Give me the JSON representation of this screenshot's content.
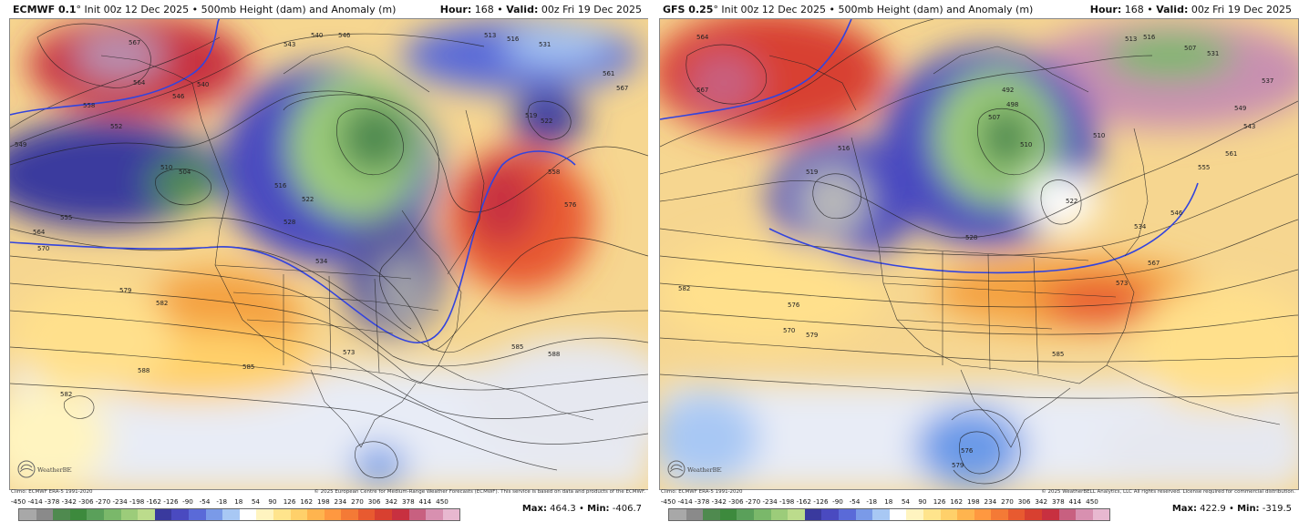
{
  "panels": [
    {
      "model": "ECMWF 0.1",
      "init": "° Init 00z 12 Dec 2025 • 500mb Height (dam) and Anomaly (m)",
      "hour_label": "Hour:",
      "hour": "168",
      "valid_label": "Valid:",
      "valid": "00z Fri 19 Dec 2025",
      "climo": "Climo: ECMWF ERA-5 1991-2020",
      "copyright": "© 2025 European Centre for Medium-Range Weather Forecasts (ECMWF). This service is based on data and products of the ECMWF.",
      "max_label": "Max:",
      "max": "464.3",
      "min_label": "Min:",
      "min": "-406.7",
      "contour_labels": [
        "567",
        "564",
        "546",
        "540",
        "558",
        "552",
        "549",
        "510",
        "504",
        "534",
        "528",
        "522",
        "516",
        "555",
        "564",
        "570",
        "579",
        "582",
        "585",
        "588",
        "582",
        "573",
        "585",
        "588",
        "576",
        "558",
        "519",
        "522",
        "513",
        "516",
        "531",
        "561",
        "567",
        "540",
        "546",
        "543"
      ]
    },
    {
      "model": "GFS 0.25",
      "init": "° Init 00z 12 Dec 2025 • 500mb Height (dam) and Anomaly (m)",
      "hour_label": "Hour:",
      "hour": "168",
      "valid_label": "Valid:",
      "valid": "00z Fri 19 Dec 2025",
      "climo": "Climo: ECMWF ERA-5 1991-2020",
      "copyright": "© 2025 WeatherBELL Analytics, LLC All rights reserved. License required for commercial distribution.",
      "max_label": "Max:",
      "max": "422.9",
      "min_label": "Min:",
      "min": "-319.5",
      "contour_labels": [
        "564",
        "567",
        "516",
        "519",
        "510",
        "507",
        "492",
        "498",
        "522",
        "528",
        "534",
        "546",
        "555",
        "561",
        "567",
        "573",
        "582",
        "576",
        "570",
        "579",
        "585",
        "576",
        "579",
        "543",
        "549",
        "537",
        "513",
        "516",
        "531",
        "507",
        "510"
      ]
    }
  ],
  "logo_text": "WeatherBELL",
  "colorbar": {
    "labels": [
      "-450",
      "-414",
      "-378",
      "-342",
      "-306",
      "-270",
      "-234",
      "-198",
      "-162",
      "-126",
      "-90",
      "-54",
      "-18",
      "18",
      "54",
      "90",
      "126",
      "162",
      "198",
      "234",
      "270",
      "306",
      "342",
      "378",
      "414",
      "450"
    ],
    "colors": [
      "#a8a8a8",
      "#8a8a8a",
      "#4f8a4f",
      "#3d8a3d",
      "#5aa05a",
      "#7ab86a",
      "#9ccc7a",
      "#bcdc8c",
      "#3a3a9e",
      "#4a4ac0",
      "#5a6ad8",
      "#7a9ae8",
      "#a8c8f4",
      "#ffffff",
      "#fff4c0",
      "#ffe48c",
      "#ffd06a",
      "#ffb44e",
      "#ff9840",
      "#f47a36",
      "#e85a30",
      "#d84030",
      "#c83040",
      "#c86080",
      "#d890b0",
      "#e8b8d0"
    ]
  }
}
